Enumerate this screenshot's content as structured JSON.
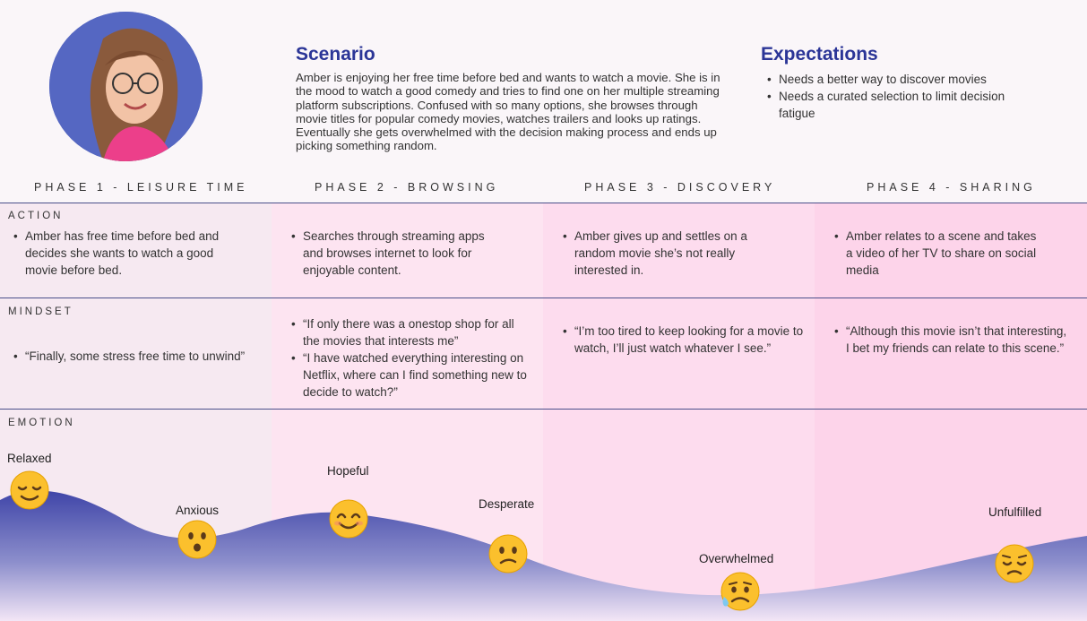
{
  "persona": {
    "avatar_icon": "persona-photo"
  },
  "scenario": {
    "title": "Scenario",
    "body": "Amber is enjoying her free time before bed and wants to watch a movie. She is in the mood to watch a good comedy and tries to find one on her multiple streaming platform subscriptions. Confused with so many options, she browses through movie titles for popular comedy movies, watches trailers and looks up ratings. Eventually she gets overwhelmed with the decision making process and ends up picking something random."
  },
  "expectations": {
    "title": "Expectations",
    "items": [
      "Needs a better way to discover movies",
      "Needs a curated selection to limit decision fatigue"
    ]
  },
  "phases": [
    "PHASE 1 - LEISURE TIME",
    "PHASE 2 - BROWSING",
    "PHASE 3 - DISCOVERY",
    "PHASE 4 - SHARING"
  ],
  "rows": {
    "action_label": "ACTION",
    "mindset_label": "MINDSET",
    "emotion_label": "EMOTION"
  },
  "action": [
    [
      "Amber has free time before bed and decides she wants to watch a good movie before bed."
    ],
    [
      "Searches through streaming apps and browses internet to look for enjoyable content."
    ],
    [
      "Amber gives up and settles on a random movie she’s not really interested in."
    ],
    [
      "Amber relates to a scene and takes a video of her TV to share on social media"
    ]
  ],
  "mindset": [
    [
      "“Finally, some stress free time to unwind”"
    ],
    [
      "“If only there was a onestop shop for all the movies that interests me”",
      "“I have watched everything interesting on Netflix, where can I find something new to decide to watch?”"
    ],
    [
      "“I’m too tired to keep looking for a movie to watch, I’ll just watch whatever I see.”"
    ],
    [
      "“Although this movie isn’t that interesting, I bet my friends can relate to this scene.”"
    ]
  ],
  "emotions": [
    {
      "label": "Relaxed",
      "icon": "relieved-face-icon"
    },
    {
      "label": "Anxious",
      "icon": "hushed-face-icon"
    },
    {
      "label": "Hopeful",
      "icon": "smiling-face-icon"
    },
    {
      "label": "Desperate",
      "icon": "confused-face-icon"
    },
    {
      "label": "Overwhelmed",
      "icon": "sad-sweat-face-icon"
    },
    {
      "label": "Unfulfilled",
      "icon": "pensive-face-icon"
    }
  ],
  "colors": {
    "heading": "#2b3597",
    "curve_top": "#3f45a8",
    "curve_bottom": "#f3e6f6",
    "divider": "#4a4f8a",
    "emoji_yellow": "#fbc02d"
  }
}
